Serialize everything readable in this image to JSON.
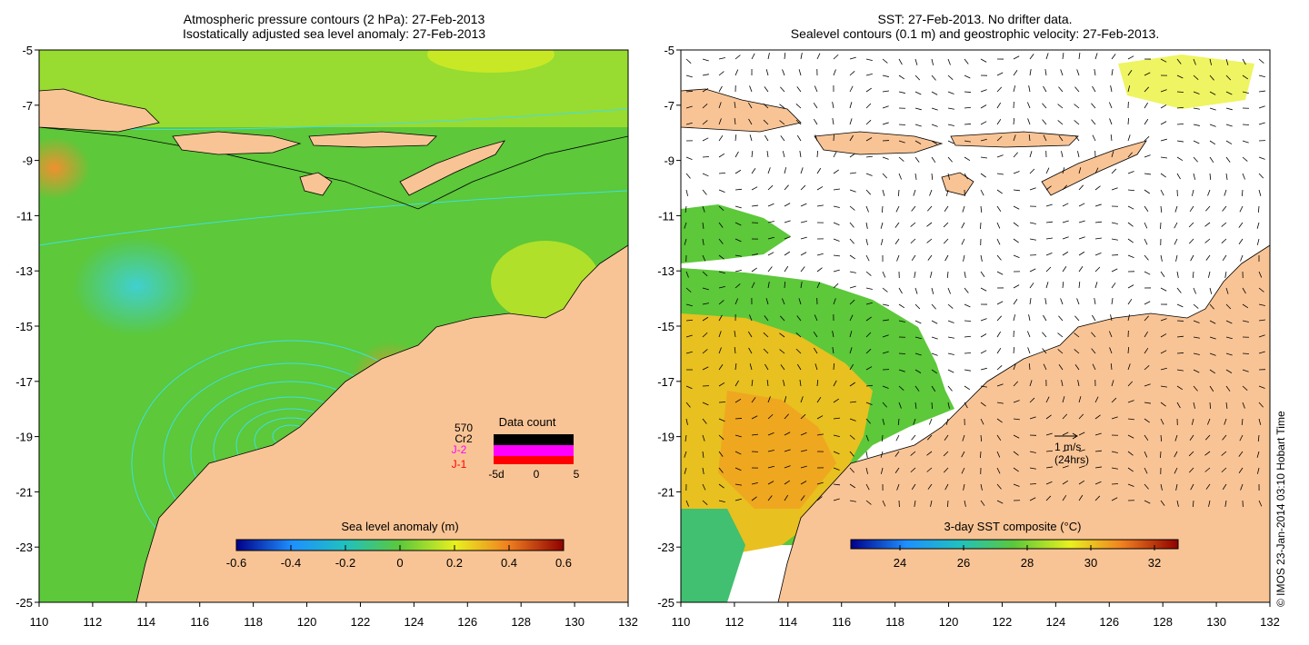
{
  "left_panel": {
    "title_line1": "Atmospheric pressure contours (2 hPa): 27-Feb-2013",
    "title_line2": "Isostatically adjusted sea level anomaly: 27-Feb-2013",
    "colorbar": {
      "title": "Sea level anomaly (m)",
      "ticks": [
        "-0.6",
        "-0.4",
        "-0.2",
        "0",
        "0.2",
        "0.4",
        "0.6"
      ]
    },
    "data_count": {
      "title": "Data count",
      "total": "570",
      "series": [
        {
          "label": "Cr2",
          "color": "#000000"
        },
        {
          "label": "J-2",
          "color": "#ff00ff"
        },
        {
          "label": "J-1",
          "color": "#ff0000"
        }
      ],
      "x_ticks": [
        "-5d",
        "0",
        "5"
      ]
    }
  },
  "right_panel": {
    "title_line1": "SST: 27-Feb-2013. No drifter data.",
    "title_line2": "Sealevel contours (0.1 m) and geostrophic velocity: 27-Feb-2013.",
    "colorbar": {
      "title": "3-day SST composite (°C)",
      "ticks": [
        "24",
        "26",
        "28",
        "30",
        "32"
      ]
    },
    "velocity_scale": {
      "line1": "1 m/s",
      "line2": "(24hrs)"
    }
  },
  "axes": {
    "x_ticks": [
      "110",
      "112",
      "114",
      "116",
      "118",
      "120",
      "122",
      "124",
      "126",
      "128",
      "130",
      "132"
    ],
    "y_ticks": [
      "-5",
      "-7",
      "-9",
      "-11",
      "-13",
      "-15",
      "-17",
      "-19",
      "-21",
      "-23",
      "-25"
    ],
    "lon_range": [
      110,
      132
    ],
    "lat_range": [
      -25,
      -5
    ]
  },
  "copyright": "© IMOS 23-Jan-2014 03:10 Hobart Time",
  "colors": {
    "land": "#f9c495",
    "ocean_left": "#5cc83a",
    "contour": "#40e0e0"
  }
}
